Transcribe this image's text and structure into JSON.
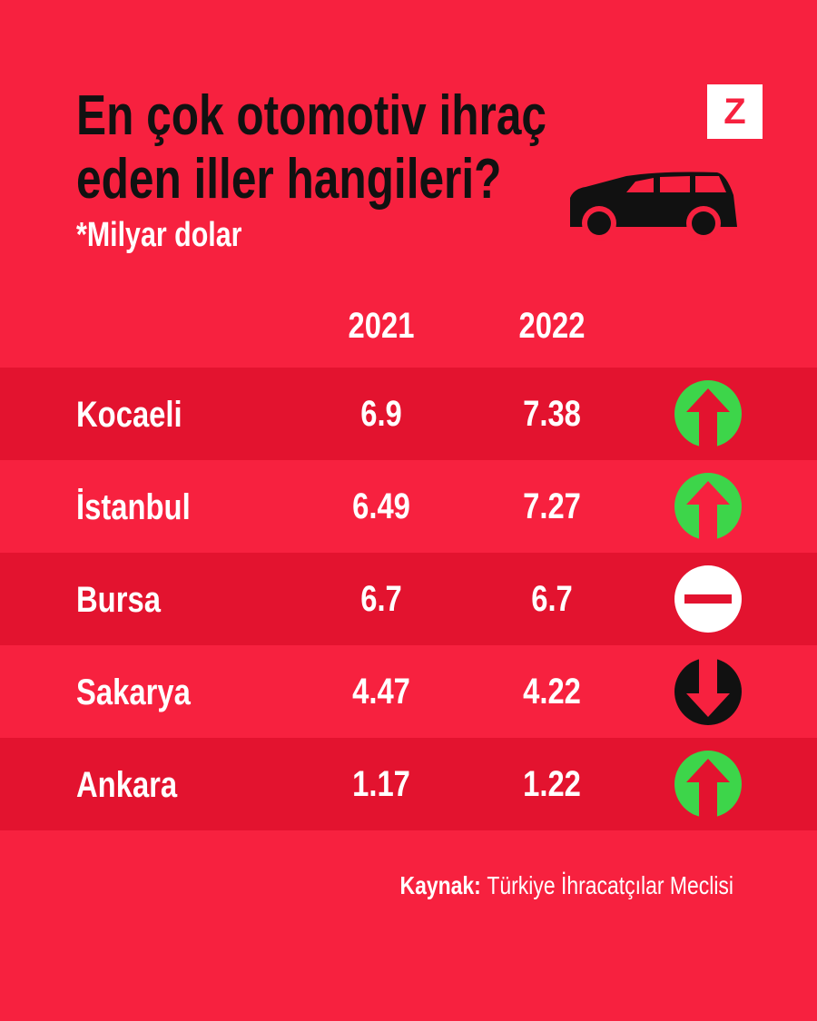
{
  "header": {
    "title_lines": [
      "En çok otomotiv ihraç",
      "eden iller hangileri?"
    ],
    "subtitle": "*Milyar dolar",
    "logo": "Z"
  },
  "table": {
    "columns": [
      "2021",
      "2022"
    ],
    "rows": [
      {
        "name": "Kocaeli",
        "values": [
          "6.9",
          "7.38"
        ],
        "trend": "up"
      },
      {
        "name": "İstanbul",
        "values": [
          "6.49",
          "7.27"
        ],
        "trend": "up"
      },
      {
        "name": "Bursa",
        "values": [
          "6.7",
          "6.7"
        ],
        "trend": "same"
      },
      {
        "name": "Sakarya",
        "values": [
          "4.47",
          "4.22"
        ],
        "trend": "down"
      },
      {
        "name": "Ankara",
        "values": [
          "1.17",
          "1.22"
        ],
        "trend": "up"
      }
    ]
  },
  "source": {
    "label": "Kaynak:",
    "text": "Türkiye İhracatçılar Meclisi"
  }
}
